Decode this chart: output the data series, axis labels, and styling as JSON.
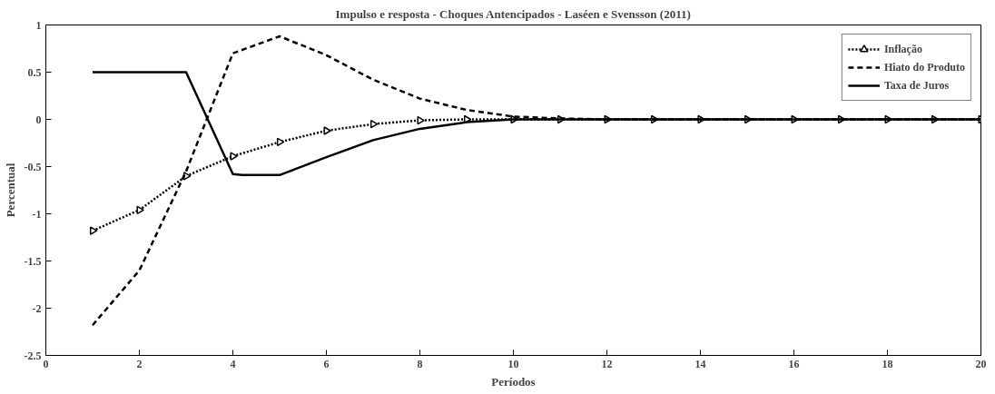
{
  "chart_data": {
    "type": "line",
    "title": "Impulso e resposta - Choques Antencipados - Laséen e Svensson (2011)",
    "xlabel": "Períodos",
    "ylabel": "Percentual",
    "x": [
      1,
      2,
      3,
      4,
      5,
      6,
      7,
      8,
      9,
      10,
      11,
      12,
      13,
      14,
      15,
      16,
      17,
      18,
      19,
      20
    ],
    "series": [
      {
        "name": "Inflação",
        "color": "#000000",
        "line_style": "dotted",
        "marker": "triangle",
        "values": [
          -1.18,
          -0.96,
          -0.6,
          -0.39,
          -0.24,
          -0.12,
          -0.05,
          -0.01,
          0,
          0,
          0,
          0,
          0,
          0,
          0,
          0,
          0,
          0,
          0,
          0
        ]
      },
      {
        "name": "Hiato do Produto",
        "color": "#000000",
        "line_style": "dashed",
        "marker": "none",
        "values": [
          -2.18,
          -1.6,
          -0.55,
          0.7,
          0.88,
          0.68,
          0.42,
          0.22,
          0.1,
          0.03,
          0.01,
          0,
          0,
          0,
          0,
          0,
          0,
          0,
          0,
          0
        ]
      },
      {
        "name": "Taxa de Juros",
        "color": "#000000",
        "line_style": "solid",
        "marker": "none",
        "x": [
          1,
          2,
          3,
          4,
          4.2,
          5,
          6,
          7,
          8,
          9,
          10,
          11,
          12,
          13,
          14,
          15,
          16,
          17,
          18,
          19,
          20
        ],
        "values": [
          0.5,
          0.5,
          0.5,
          -0.58,
          -0.59,
          -0.59,
          -0.4,
          -0.22,
          -0.1,
          -0.03,
          0,
          0,
          0,
          0,
          0,
          0,
          0,
          0,
          0,
          0,
          0
        ]
      }
    ],
    "xlim": [
      0,
      20
    ],
    "xticks": [
      0,
      2,
      4,
      6,
      8,
      10,
      12,
      14,
      16,
      18,
      20
    ],
    "ylim": [
      -2.5,
      1
    ],
    "yticks": [
      -2.5,
      -2,
      -1.5,
      -1,
      -0.5,
      0,
      0.5,
      1
    ],
    "grid": false,
    "legend": "top right"
  }
}
